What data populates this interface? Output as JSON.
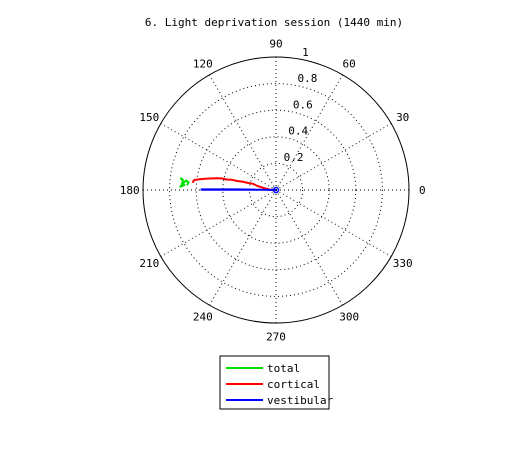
{
  "chart_data": {
    "type": "polar",
    "title": "6. Light deprivation session (1440 min)",
    "r_ticks": [
      "0.2",
      "0.4",
      "0.6",
      "0.8",
      "1"
    ],
    "r_values": [
      0.2,
      0.4,
      0.6,
      0.8,
      1.0
    ],
    "angle_values": [
      0,
      30,
      60,
      90,
      120,
      150,
      180,
      210,
      240,
      270,
      300,
      330
    ],
    "angle_labels": [
      "0",
      "30",
      "60",
      "90",
      "120",
      "150",
      "180",
      "210",
      "240",
      "270",
      "300",
      "330"
    ],
    "rlim": [
      0,
      1
    ],
    "grid": true,
    "legend_position": "bottom",
    "series": [
      {
        "name": "total",
        "color": "#00e000",
        "points": [
          [
            0.7,
            174
          ],
          [
            0.72,
            173
          ],
          [
            0.7,
            175
          ],
          [
            0.71,
            176
          ],
          [
            0.69,
            177
          ],
          [
            0.72,
            178
          ],
          [
            0.7,
            176
          ],
          [
            0.68,
            174
          ],
          [
            0.66,
            175
          ],
          [
            0.67,
            177
          ]
        ]
      },
      {
        "name": "cortical",
        "color": "#ff0000",
        "points": [
          [
            0.02,
            180
          ],
          [
            0.05,
            176
          ],
          [
            0.08,
            172
          ],
          [
            0.1,
            170
          ],
          [
            0.14,
            168
          ],
          [
            0.18,
            165
          ],
          [
            0.22,
            166
          ],
          [
            0.26,
            166
          ],
          [
            0.3,
            167
          ],
          [
            0.34,
            167
          ],
          [
            0.38,
            168
          ],
          [
            0.42,
            168
          ],
          [
            0.46,
            169
          ],
          [
            0.5,
            170
          ],
          [
            0.54,
            171
          ],
          [
            0.58,
            172
          ],
          [
            0.62,
            173
          ],
          [
            0.63,
            175
          ]
        ]
      },
      {
        "name": "vestibular",
        "color": "#0000ff",
        "points": [
          [
            0.0,
            0
          ],
          [
            0.1,
            179
          ],
          [
            0.2,
            179.5
          ],
          [
            0.3,
            179.7
          ],
          [
            0.4,
            179.8
          ],
          [
            0.5,
            179.8
          ],
          [
            0.56,
            179.8
          ],
          [
            0.56,
            179.5
          ],
          [
            0.45,
            179.4
          ],
          [
            0.3,
            179.2
          ],
          [
            0.15,
            179
          ]
        ]
      }
    ]
  }
}
